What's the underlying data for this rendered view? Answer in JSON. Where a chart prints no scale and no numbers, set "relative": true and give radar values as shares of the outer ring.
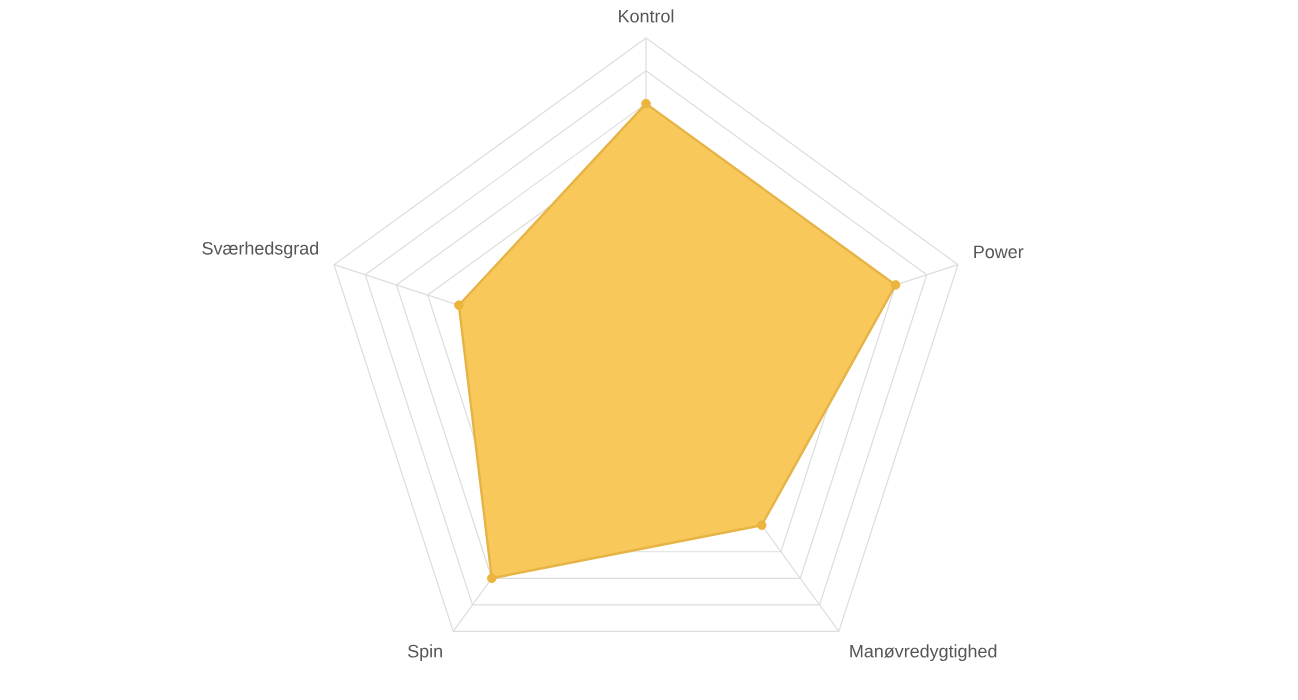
{
  "chart_data": {
    "type": "radar",
    "relative": true,
    "grid": true,
    "marker": "circle",
    "categories": [
      "Kontrol",
      "Power",
      "Manøvredygtighed",
      "Spin",
      "Sværhedsgrad"
    ],
    "series": [
      {
        "color": "#f9c85b",
        "values": [
          0.8,
          0.8,
          0.6,
          0.8,
          0.6
        ]
      }
    ]
  }
}
